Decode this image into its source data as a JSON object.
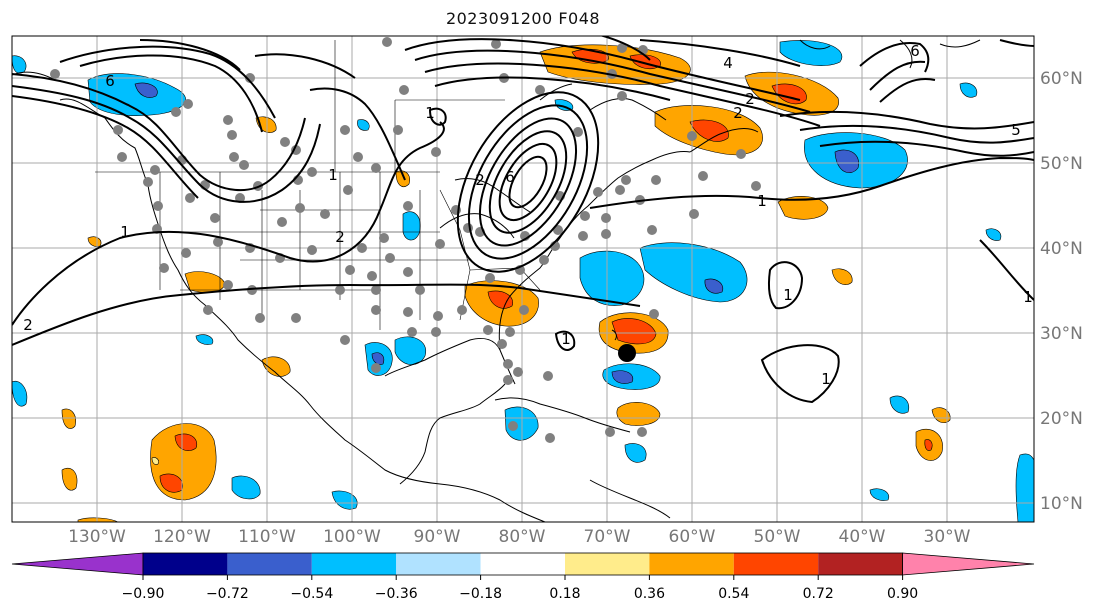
{
  "title": "2023091200 F048",
  "map": {
    "longitude_labels": [
      "130°W",
      "120°W",
      "110°W",
      "100°W",
      "90°W",
      "80°W",
      "70°W",
      "60°W",
      "50°W",
      "40°W",
      "30°W"
    ],
    "latitude_labels": [
      "60°N",
      "50°N",
      "40°N",
      "30°N",
      "20°N",
      "10°N"
    ],
    "contour_labels": [
      "6",
      "1",
      "1",
      "2",
      "1",
      "2",
      "2",
      "4",
      "5",
      "6",
      "1",
      "2",
      "1",
      "6",
      "1",
      "1",
      "2",
      "1"
    ]
  },
  "colorbar": {
    "tick_labels": [
      "−0.90",
      "−0.72",
      "−0.54",
      "−0.36",
      "−0.18",
      "0.18",
      "0.36",
      "0.54",
      "0.72",
      "0.90"
    ],
    "colors": [
      "#9932cc",
      "#00008b",
      "#3a5fcd",
      "#00bfff",
      "#b0e2ff",
      "#ffffff",
      "#ffec8b",
      "#ffa500",
      "#ff4500",
      "#b22222",
      "#ff82ab"
    ]
  },
  "colors": {
    "land_fill": "#ffffff",
    "grid": "#aaaaaa",
    "coast": "#000000",
    "station_dot": "#808080",
    "marker": "#000000",
    "axis_label": "#777777"
  }
}
